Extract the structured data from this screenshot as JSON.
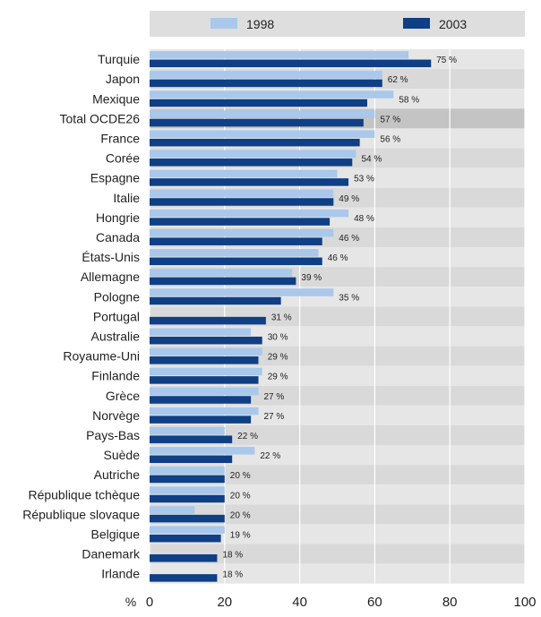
{
  "chart_data": {
    "type": "bar",
    "orientation": "horizontal",
    "categories": [
      "Turquie",
      "Japon",
      "Mexique",
      "Total OCDE26",
      "France",
      "Corée",
      "Espagne",
      "Italie",
      "Hongrie",
      "Canada",
      "États-Unis",
      "Allemagne",
      "Pologne",
      "Portugal",
      "Australie",
      "Royaume-Uni",
      "Finlande",
      "Grèce",
      "Norvège",
      "Pays-Bas",
      "Suède",
      "Autriche",
      "République tchèque",
      "République slovaque",
      "Belgique",
      "Danemark",
      "Irlande"
    ],
    "series": [
      {
        "name": "1998",
        "color": "#a9c8eb",
        "values": [
          69,
          62,
          65,
          60,
          60,
          55,
          50,
          49,
          53,
          49,
          45,
          38,
          49,
          null,
          27,
          30,
          30,
          29,
          29,
          20,
          28,
          20,
          20,
          12,
          20,
          null,
          null
        ]
      },
      {
        "name": "2003",
        "color": "#0f3f85",
        "values": [
          75,
          62,
          58,
          57,
          56,
          54,
          53,
          49,
          48,
          46,
          46,
          39,
          35,
          31,
          30,
          29,
          29,
          27,
          27,
          22,
          22,
          20,
          20,
          20,
          19,
          18,
          18
        ]
      }
    ],
    "data_labels": [
      "75 %",
      "62 %",
      "58 %",
      "57 %",
      "56 %",
      "54 %",
      "53 %",
      "49 %",
      "48 %",
      "46 %",
      "46 %",
      "39 %",
      "35 %",
      "31 %",
      "30 %",
      "29 %",
      "29 %",
      "27 %",
      "27 %",
      "22 %",
      "22 %",
      "20 %",
      "20 %",
      "20 %",
      "19 %",
      "18 %",
      "18 %"
    ],
    "highlight_category": "Total OCDE26",
    "xlabel": "%",
    "xlim": [
      0,
      100
    ],
    "xticks": [
      0,
      20,
      40,
      60,
      80,
      100
    ],
    "grid": true,
    "legend_position": "top",
    "colors": {
      "band": "#e6e6e6",
      "band_alt": "#d9d9d9",
      "highlight_row": "#c4c4c4",
      "legend_bg": "#dedede",
      "text": "#222222"
    }
  }
}
